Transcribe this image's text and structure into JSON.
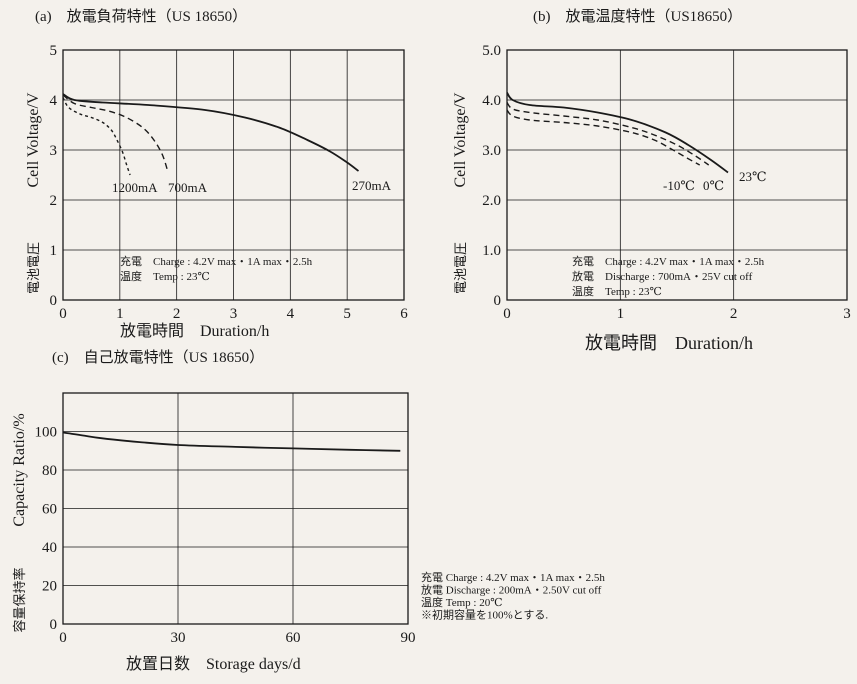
{
  "colors": {
    "background": "#f4f1ec",
    "ink": "#1a1a1a"
  },
  "chart_data": [
    {
      "id": "a",
      "type": "line",
      "title": "(a)　放電負荷特性（US 18650）",
      "xlabel": "放電時間　Duration/h",
      "ylabel_en": "Cell Voltage/V",
      "ylabel_jp": "電池電圧",
      "xlim": [
        0,
        6
      ],
      "ylim": [
        0,
        5
      ],
      "xticks": [
        "0",
        "1",
        "2",
        "3",
        "4",
        "5",
        "6"
      ],
      "yticks": [
        "0",
        "1",
        "2",
        "3",
        "4",
        "5"
      ],
      "grid": true,
      "notes": [
        "充電　Charge : 4.2V max・1A max・2.5h",
        "温度　Temp : 23℃"
      ],
      "series": [
        {
          "name": "1200mA",
          "style": "dashed-fine",
          "x": [
            0,
            0.1,
            0.3,
            0.5,
            0.7,
            0.85,
            0.95,
            1.05,
            1.12,
            1.18
          ],
          "y": [
            4.05,
            3.85,
            3.72,
            3.65,
            3.55,
            3.4,
            3.2,
            2.95,
            2.7,
            2.5
          ]
        },
        {
          "name": "700mA",
          "style": "dashed",
          "x": [
            0,
            0.2,
            0.5,
            0.8,
            1.1,
            1.4,
            1.6,
            1.75,
            1.85
          ],
          "y": [
            4.1,
            3.93,
            3.85,
            3.78,
            3.66,
            3.45,
            3.2,
            2.9,
            2.55
          ]
        },
        {
          "name": "270mA",
          "style": "solid",
          "x": [
            0,
            0.2,
            0.7,
            1.5,
            2.5,
            3.2,
            3.8,
            4.3,
            4.7,
            5.0,
            5.2
          ],
          "y": [
            4.12,
            4.0,
            3.95,
            3.9,
            3.8,
            3.65,
            3.45,
            3.2,
            2.97,
            2.75,
            2.58
          ]
        }
      ]
    },
    {
      "id": "b",
      "type": "line",
      "title": "(b)　放電温度特性（US18650）",
      "xlabel": "放電時間　Duration/h",
      "ylabel_en": "Cell Voltage/V",
      "ylabel_jp": "電池電圧",
      "xlim": [
        0,
        3
      ],
      "ylim": [
        0,
        5
      ],
      "xticks": [
        "0",
        "1",
        "2",
        "3"
      ],
      "yticks": [
        "0",
        "1.0",
        "2.0",
        "3.0",
        "4.0",
        "5.0"
      ],
      "grid": true,
      "notes": [
        "充電　Charge : 4.2V max・1A max・2.5h",
        "放電　Discharge : 700mA・25V cut off",
        "温度　Temp : 23℃"
      ],
      "series": [
        {
          "name": "23℃",
          "style": "solid",
          "x": [
            0,
            0.05,
            0.2,
            0.5,
            0.8,
            1.1,
            1.4,
            1.6,
            1.8,
            1.95
          ],
          "y": [
            4.15,
            4.0,
            3.9,
            3.85,
            3.75,
            3.6,
            3.35,
            3.1,
            2.8,
            2.55
          ]
        },
        {
          "name": "0℃",
          "style": "dashed",
          "x": [
            0,
            0.05,
            0.2,
            0.5,
            0.8,
            1.1,
            1.3,
            1.5,
            1.65,
            1.78
          ],
          "y": [
            3.95,
            3.82,
            3.75,
            3.68,
            3.6,
            3.45,
            3.3,
            3.1,
            2.9,
            2.7
          ]
        },
        {
          "name": "-10℃",
          "style": "dashed",
          "x": [
            0,
            0.05,
            0.2,
            0.5,
            0.8,
            1.1,
            1.3,
            1.45,
            1.58,
            1.7
          ],
          "y": [
            3.8,
            3.68,
            3.6,
            3.55,
            3.48,
            3.35,
            3.2,
            3.02,
            2.85,
            2.7
          ]
        }
      ]
    },
    {
      "id": "c",
      "type": "line",
      "title": "(c)　自己放電特性（US 18650）",
      "xlabel": "放置日数　Storage days/d",
      "ylabel_en": "Capacity Ratio/%",
      "ylabel_jp": "容量保持率",
      "xlim": [
        0,
        90
      ],
      "ylim": [
        0,
        120
      ],
      "xticks": [
        "0",
        "30",
        "60",
        "90"
      ],
      "yticks": [
        "0",
        "20",
        "40",
        "60",
        "80",
        "100"
      ],
      "grid": true,
      "notes": [
        "充電 Charge : 4.2V max・1A max・2.5h",
        "放電 Discharge : 200mA・2.50V cut off",
        "温度 Temp : 20℃",
        "※初期容量を100%とする."
      ],
      "series": [
        {
          "name": "",
          "style": "solid",
          "x": [
            0,
            5,
            10,
            20,
            30,
            45,
            60,
            75,
            88
          ],
          "y": [
            99.5,
            98,
            96.5,
            94.5,
            93,
            92,
            91.2,
            90.5,
            90
          ]
        }
      ]
    }
  ]
}
